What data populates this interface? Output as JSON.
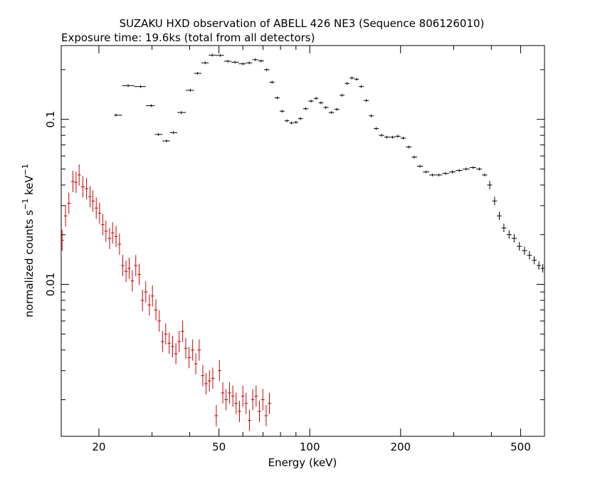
{
  "chart_data": {
    "type": "scatter",
    "title": "SUZAKU HXD observation of ABELL 426 NE3 (Sequence 806126010)",
    "subtitle": "Exposure time: 19.6ks (total from all detectors)",
    "xlabel": "Energy (keV)",
    "ylabel_main": "normalized counts s",
    "ylabel_exp1": "−1",
    "ylabel_mid": " keV",
    "ylabel_exp2": "−1",
    "xscale": "log",
    "yscale": "log",
    "xlim": [
      15,
      600
    ],
    "ylim": [
      0.0012,
      0.28
    ],
    "x_ticks": [
      20,
      50,
      100,
      200,
      500
    ],
    "x_tick_labels": [
      "20",
      "50",
      "100",
      "200",
      "500"
    ],
    "y_ticks": [
      0.01,
      0.1
    ],
    "y_tick_labels": [
      "0.01",
      "0.1"
    ],
    "grid": false,
    "series": [
      {
        "color": "#000000",
        "points": [
          [
            22.8,
            0.106
          ],
          [
            25.0,
            0.16
          ],
          [
            27.5,
            0.158
          ],
          [
            29.8,
            0.121
          ],
          [
            31.5,
            0.081
          ],
          [
            33.5,
            0.074
          ],
          [
            35.3,
            0.083
          ],
          [
            37.5,
            0.11
          ],
          [
            40.2,
            0.15
          ],
          [
            42.5,
            0.19
          ],
          [
            45.0,
            0.22
          ],
          [
            47.5,
            0.245
          ],
          [
            50.5,
            0.244
          ],
          [
            53.5,
            0.225
          ],
          [
            56.5,
            0.222
          ],
          [
            60.0,
            0.217
          ],
          [
            63.0,
            0.22
          ],
          [
            66.0,
            0.23
          ],
          [
            69.0,
            0.226
          ],
          [
            72.0,
            0.2
          ],
          [
            75.0,
            0.168
          ],
          [
            78.0,
            0.135
          ],
          [
            81.0,
            0.112
          ],
          [
            84.0,
            0.098
          ],
          [
            87.0,
            0.095
          ],
          [
            90.0,
            0.096
          ],
          [
            93.0,
            0.101
          ],
          [
            97.0,
            0.116
          ],
          [
            101.0,
            0.129
          ],
          [
            105.0,
            0.134
          ],
          [
            109.0,
            0.126
          ],
          [
            113.0,
            0.118
          ],
          [
            118.0,
            0.11
          ],
          [
            123.0,
            0.115
          ],
          [
            128.0,
            0.14
          ],
          [
            133.0,
            0.165
          ],
          [
            138.0,
            0.178
          ],
          [
            143.0,
            0.175
          ],
          [
            148.0,
            0.158
          ],
          [
            154.0,
            0.13
          ],
          [
            160.0,
            0.105
          ],
          [
            166.0,
            0.088
          ],
          [
            173.0,
            0.08
          ],
          [
            180.0,
            0.078
          ],
          [
            188.0,
            0.078
          ],
          [
            196.0,
            0.079
          ],
          [
            204.0,
            0.077
          ],
          [
            213.0,
            0.068
          ],
          [
            222.0,
            0.059
          ],
          [
            232.0,
            0.052
          ],
          [
            243.0,
            0.048
          ],
          [
            255.0,
            0.046
          ],
          [
            268.0,
            0.046
          ],
          [
            282.0,
            0.047
          ],
          [
            297.0,
            0.048
          ],
          [
            313.0,
            0.049
          ],
          [
            330.0,
            0.05
          ],
          [
            348.0,
            0.051
          ],
          [
            365.0,
            0.05
          ],
          [
            380.0,
            0.046
          ],
          [
            395.0,
            0.04
          ],
          [
            410.0,
            0.032
          ],
          [
            425.0,
            0.026
          ],
          [
            440.0,
            0.022
          ],
          [
            458.0,
            0.02
          ],
          [
            476.0,
            0.019
          ],
          [
            495.0,
            0.017
          ],
          [
            515.0,
            0.016
          ],
          [
            535.0,
            0.015
          ],
          [
            555.0,
            0.014
          ],
          [
            575.0,
            0.013
          ],
          [
            592.0,
            0.0125
          ]
        ]
      },
      {
        "color": "#cc0000",
        "points": [
          [
            15.1,
            0.0185
          ],
          [
            15.5,
            0.026
          ],
          [
            15.9,
            0.031
          ],
          [
            16.4,
            0.042
          ],
          [
            16.8,
            0.0415
          ],
          [
            17.2,
            0.046
          ],
          [
            17.7,
            0.039
          ],
          [
            18.2,
            0.038
          ],
          [
            18.7,
            0.034
          ],
          [
            19.1,
            0.032
          ],
          [
            19.6,
            0.029
          ],
          [
            20.1,
            0.027
          ],
          [
            20.6,
            0.023
          ],
          [
            21.1,
            0.021
          ],
          [
            21.7,
            0.019
          ],
          [
            22.2,
            0.0205
          ],
          [
            22.8,
            0.0195
          ],
          [
            23.4,
            0.0175
          ],
          [
            24.0,
            0.013
          ],
          [
            24.6,
            0.012
          ],
          [
            25.2,
            0.0125
          ],
          [
            25.8,
            0.0105
          ],
          [
            26.5,
            0.013
          ],
          [
            27.2,
            0.0115
          ],
          [
            27.9,
            0.008
          ],
          [
            28.6,
            0.009
          ],
          [
            29.4,
            0.0075
          ],
          [
            30.1,
            0.0085
          ],
          [
            30.9,
            0.007
          ],
          [
            31.7,
            0.006
          ],
          [
            32.5,
            0.0045
          ],
          [
            33.3,
            0.005
          ],
          [
            34.2,
            0.0044
          ],
          [
            35.1,
            0.0042
          ],
          [
            36.0,
            0.0038
          ],
          [
            36.9,
            0.0045
          ],
          [
            37.9,
            0.0052
          ],
          [
            38.8,
            0.0041
          ],
          [
            39.8,
            0.0036
          ],
          [
            40.9,
            0.004
          ],
          [
            41.9,
            0.0033
          ],
          [
            43.0,
            0.004
          ],
          [
            44.2,
            0.0028
          ],
          [
            45.3,
            0.0025
          ],
          [
            46.5,
            0.0026
          ],
          [
            47.7,
            0.0027
          ],
          [
            49.0,
            0.0016
          ],
          [
            50.2,
            0.003
          ],
          [
            51.5,
            0.0022
          ],
          [
            52.8,
            0.002
          ],
          [
            54.2,
            0.0022
          ],
          [
            55.6,
            0.0021
          ],
          [
            57.0,
            0.0019
          ],
          [
            58.5,
            0.0017
          ],
          [
            60.0,
            0.0021
          ],
          [
            61.5,
            0.0019
          ],
          [
            63.1,
            0.0015
          ],
          [
            64.7,
            0.002
          ],
          [
            66.4,
            0.0021
          ],
          [
            68.1,
            0.0017
          ],
          [
            69.9,
            0.002
          ],
          [
            71.7,
            0.0016
          ],
          [
            73.5,
            0.0019
          ]
        ]
      }
    ]
  }
}
